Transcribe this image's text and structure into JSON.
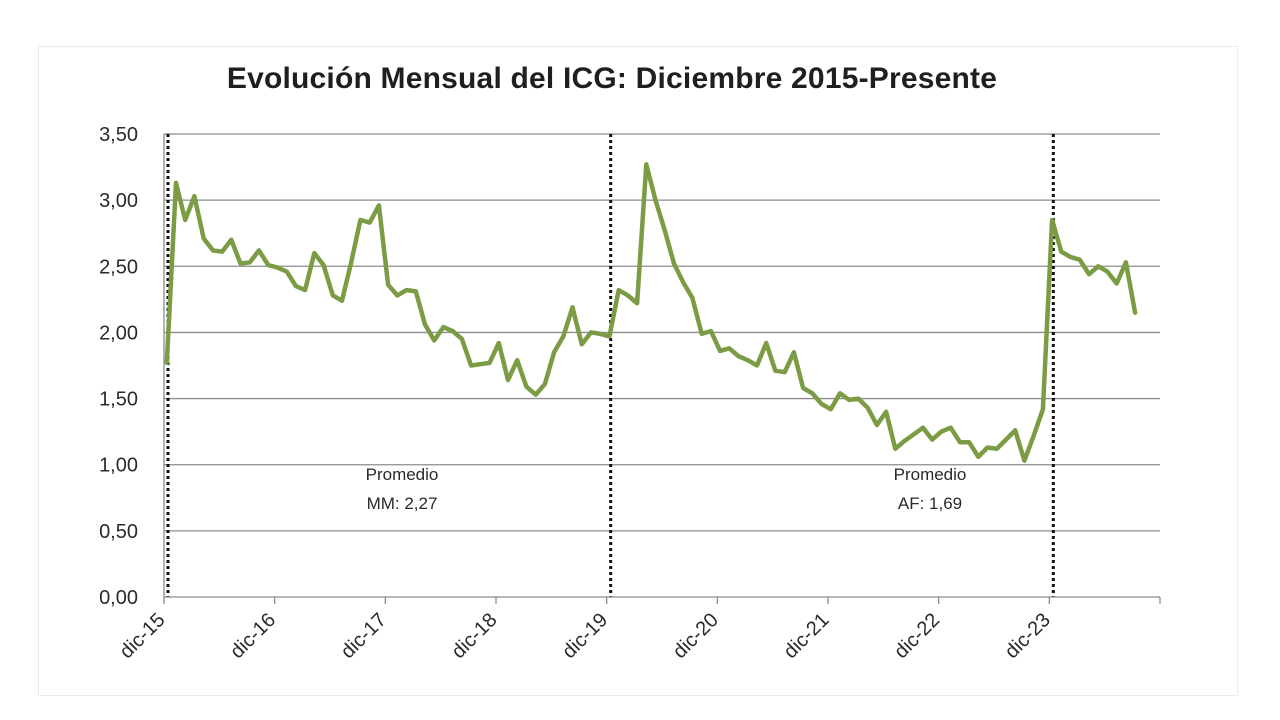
{
  "chart_data": {
    "type": "line",
    "title": "Evolución Mensual del ICG: Diciembre 2015-Presente",
    "xlabel": "",
    "ylabel": "",
    "ylim": [
      0,
      3.5
    ],
    "y_ticks": [
      "0,00",
      "0,50",
      "1,00",
      "1,50",
      "2,00",
      "2,50",
      "3,00",
      "3,50"
    ],
    "x_ticks": [
      "dic-15",
      "dic-16",
      "dic-17",
      "dic-18",
      "dic-19",
      "dic-20",
      "dic-21",
      "dic-22",
      "dic-23"
    ],
    "grid": true,
    "legend": "none",
    "series_color": "#7b9c45",
    "series": [
      {
        "values": [
          1.77,
          3.13,
          2.85,
          3.03,
          2.71,
          2.62,
          2.61,
          2.7,
          2.52,
          2.53,
          2.62,
          2.51,
          2.49,
          2.46,
          2.35,
          2.32,
          2.6,
          2.51,
          2.28,
          2.24,
          2.53,
          2.85,
          2.83,
          2.96,
          2.36,
          2.28,
          2.32,
          2.31,
          2.06,
          1.94,
          2.04,
          2.01,
          1.95,
          1.75,
          1.76,
          1.77,
          1.92,
          1.64,
          1.79,
          1.59,
          1.53,
          1.61,
          1.85,
          1.97,
          2.19,
          1.91,
          2.0,
          1.99,
          1.97,
          2.32,
          2.28,
          2.22,
          3.27,
          3.0,
          2.77,
          2.52,
          2.38,
          2.26,
          1.99,
          2.01,
          1.86,
          1.88,
          1.82,
          1.79,
          1.75,
          1.92,
          1.71,
          1.7,
          1.85,
          1.58,
          1.54,
          1.46,
          1.42,
          1.54,
          1.49,
          1.5,
          1.43,
          1.3,
          1.4,
          1.12,
          1.18,
          1.23,
          1.28,
          1.19,
          1.25,
          1.28,
          1.17,
          1.17,
          1.06,
          1.13,
          1.12,
          1.19,
          1.26,
          1.03,
          1.22,
          1.42,
          2.85,
          2.61,
          2.57,
          2.55,
          2.44,
          2.5,
          2.46,
          2.37,
          2.53,
          2.15
        ]
      }
    ],
    "period_markers": [
      "dic-15",
      "dic-19",
      "dic-23"
    ],
    "annotations": [
      {
        "line1": "Promedio",
        "line2": "MM: 2,27"
      },
      {
        "line1": "Promedio",
        "line2": "AF: 1,69"
      }
    ]
  }
}
